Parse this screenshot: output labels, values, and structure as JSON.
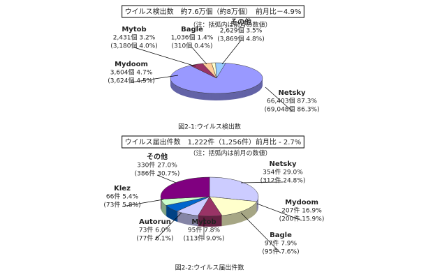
{
  "chart_data": [
    {
      "type": "pie",
      "title": "ウイルス検出数　約7.6万個（約8万個）　前月比－4.9%",
      "note": "（注：括弧内は前月の数値）",
      "caption": "図2-1:ウイルス検出数",
      "categories": [
        "Netsky",
        "Mydoom",
        "Mytob",
        "Bagle",
        "その他"
      ],
      "values": [
        87.3,
        4.7,
        3.2,
        1.4,
        3.5
      ],
      "value_labels": [
        "66,403個 87.3%",
        "3,604個 4.7%",
        "2,431個 3.2%",
        "1,036個 1.4%",
        "2,629個 3.5%"
      ],
      "previous_labels": [
        "(69,048個 86.3%)",
        "(3,624個 4.5%)",
        "(3,180個 4.0%)",
        "(310個 0.4%)",
        "(3,869個 4.8%)"
      ],
      "colors": [
        "#9999ff",
        "#993366",
        "#ffcc99",
        "#ffffcc",
        "#99ccff"
      ]
    },
    {
      "type": "pie",
      "title": "ウイルス届出件数　1,222件（1,256件）前月比 - 2.7%",
      "note": "（注：括弧内は前月の数値）",
      "caption": "図2-2:ウイルス届出件数",
      "categories": [
        "Netsky",
        "Mydoom",
        "Bagle",
        "Mytob",
        "Autorun",
        "Klez",
        "その他"
      ],
      "values": [
        29.0,
        16.9,
        7.9,
        7.8,
        6.0,
        5.4,
        27.0
      ],
      "value_labels": [
        "354件 29.0%",
        "207件 16.9%",
        "97件 7.9%",
        "95件 7.8%",
        "73件 6.0%",
        "66件 5.4%",
        "330件 27.0%"
      ],
      "previous_labels": [
        "(312件 24.8%)",
        "(200件 15.9%)",
        "(95件 7.6%)",
        "(113件 9.0%)",
        "(77件 6.1%)",
        "(73件 5.8%)",
        "(386件 30.7%)"
      ],
      "colors": [
        "#ccccff",
        "#ffffcc",
        "#993366",
        "#ccccff",
        "#0066cc",
        "#ccffcc",
        "#800080"
      ]
    }
  ]
}
